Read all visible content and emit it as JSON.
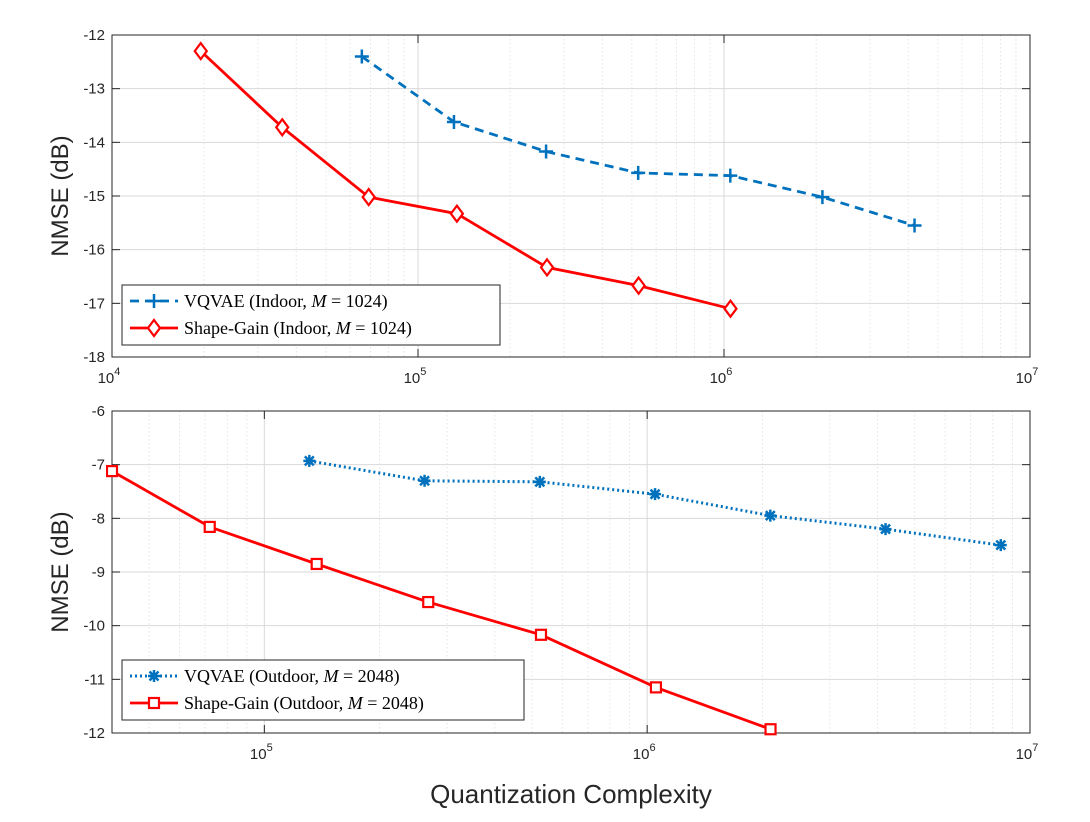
{
  "chart_data": [
    {
      "type": "line",
      "xscale": "log",
      "xlim": [
        10000,
        10000000
      ],
      "ylim": [
        -18,
        -12
      ],
      "xlabel": "",
      "ylabel": "NMSE (dB)",
      "yticks": [
        "-12",
        "-13",
        "-14",
        "-15",
        "-16",
        "-17",
        "-18"
      ],
      "xticks": [
        {
          "base": "10",
          "exp": "4",
          "value": 10000
        },
        {
          "base": "10",
          "exp": "5",
          "value": 100000
        },
        {
          "base": "10",
          "exp": "6",
          "value": 1000000
        },
        {
          "base": "10",
          "exp": "7",
          "value": 10000000
        }
      ],
      "grid": true,
      "legend_position": "bottom-left",
      "series": [
        {
          "name": "VQVAE (Indoor, M = 1024)",
          "legend": {
            "prefix": "VQVAE (Indoor, ",
            "var": "M",
            "suffix": " = 1024)"
          },
          "color": "#0072BD",
          "line": "dashed",
          "marker": "plus",
          "x": [
            65536,
            131072,
            262144,
            524288,
            1048576,
            2097152,
            4194304
          ],
          "y": [
            -12.4,
            -13.62,
            -14.17,
            -14.57,
            -14.62,
            -15.02,
            -15.55
          ]
        },
        {
          "name": "Shape-Gain (Indoor, M = 1024)",
          "legend": {
            "prefix": "Shape-Gain (Indoor, ",
            "var": "M",
            "suffix": " = 1024)"
          },
          "color": "#FF0000",
          "line": "solid",
          "marker": "diamond",
          "x": [
            19500,
            36000,
            69000,
            134000,
            264000,
            526000,
            1050000
          ],
          "y": [
            -12.3,
            -13.72,
            -15.02,
            -15.33,
            -16.33,
            -16.67,
            -17.1
          ]
        }
      ]
    },
    {
      "type": "line",
      "xscale": "log",
      "xlim": [
        40000,
        10000000
      ],
      "ylim": [
        -12,
        -6
      ],
      "xlabel": "Quantization Complexity",
      "ylabel": "NMSE (dB)",
      "yticks": [
        "-6",
        "-7",
        "-8",
        "-9",
        "-10",
        "-11",
        "-12"
      ],
      "xticks": [
        {
          "base": "10",
          "exp": "5",
          "value": 100000
        },
        {
          "base": "10",
          "exp": "6",
          "value": 1000000
        },
        {
          "base": "10",
          "exp": "7",
          "value": 10000000
        }
      ],
      "grid": true,
      "legend_position": "bottom-left",
      "series": [
        {
          "name": "VQVAE (Outdoor, M = 2048)",
          "legend": {
            "prefix": "VQVAE (Outdoor, ",
            "var": "M",
            "suffix": " = 2048)"
          },
          "color": "#0072BD",
          "line": "dotted",
          "marker": "asterisk",
          "x": [
            131072,
            262144,
            524288,
            1048576,
            2097152,
            4194304,
            8388608
          ],
          "y": [
            -6.93,
            -7.3,
            -7.32,
            -7.55,
            -7.95,
            -8.2,
            -8.5
          ]
        },
        {
          "name": "Shape-Gain (Outdoor, M = 2048)",
          "legend": {
            "prefix": "Shape-Gain (Outdoor, ",
            "var": "M",
            "suffix": " = 2048)"
          },
          "color": "#FF0000",
          "line": "solid",
          "marker": "square",
          "x": [
            40000,
            72000,
            137000,
            268000,
            528000,
            1054000,
            2100000
          ],
          "y": [
            -7.12,
            -8.16,
            -8.85,
            -9.56,
            -10.17,
            -11.15,
            -11.93
          ]
        }
      ]
    }
  ]
}
